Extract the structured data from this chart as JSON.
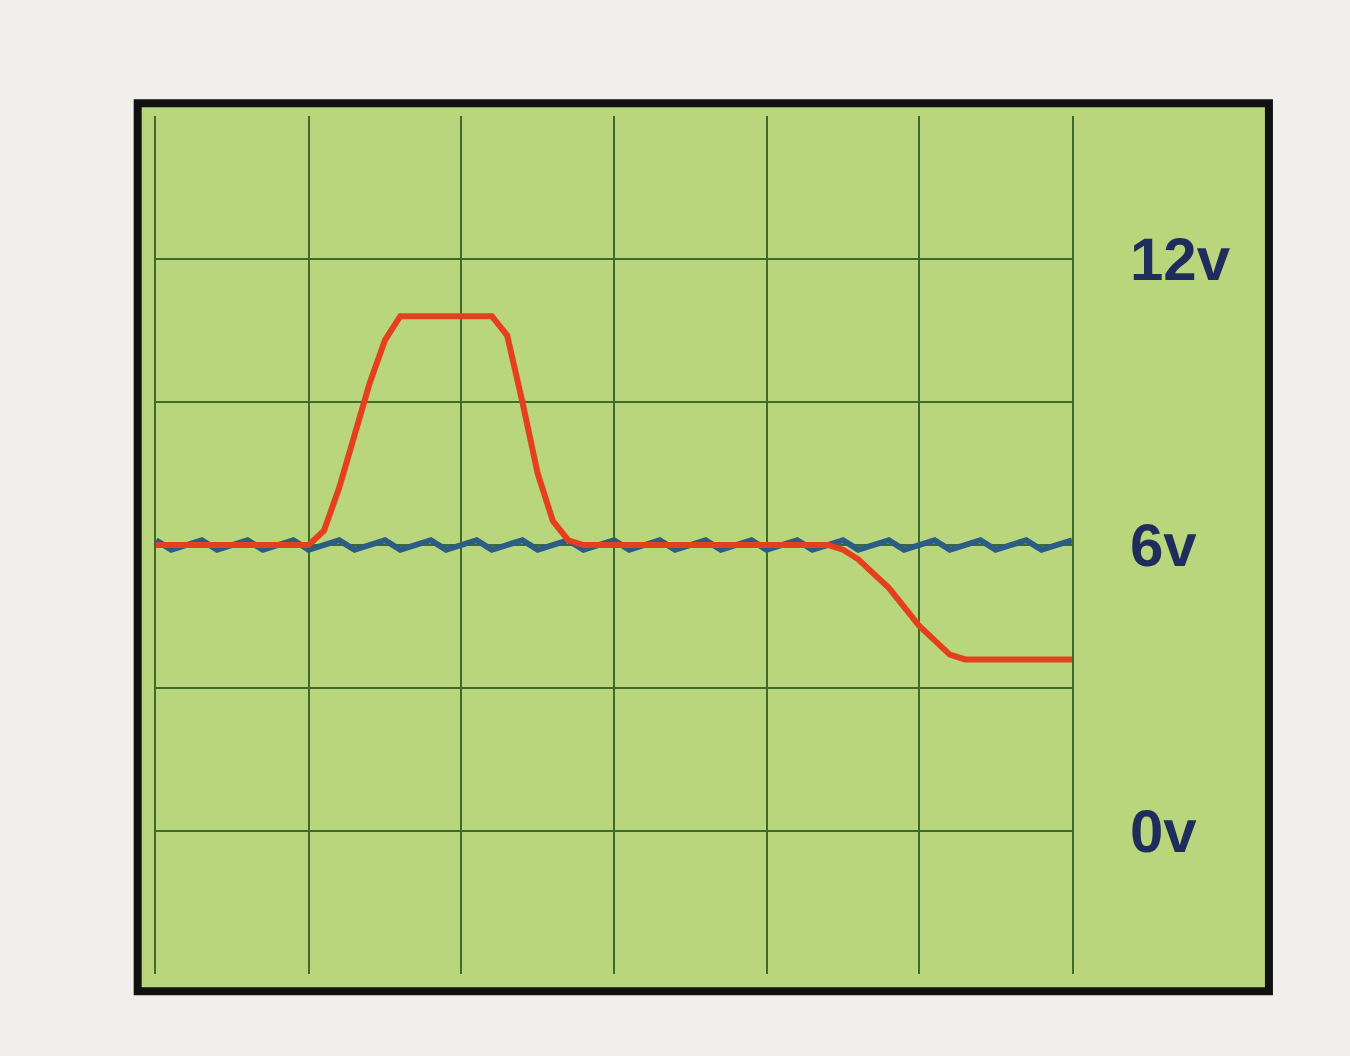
{
  "chart_data": {
    "type": "line",
    "categories": [
      null,
      null,
      null,
      null,
      null,
      null,
      null,
      null,
      null,
      null,
      null,
      null,
      null,
      null,
      null,
      null,
      null,
      null,
      null,
      null,
      null,
      null,
      null,
      null,
      null,
      null,
      null,
      null,
      null,
      null,
      null,
      null,
      null,
      null,
      null,
      null,
      null,
      null,
      null,
      null,
      null,
      null,
      null,
      null,
      null,
      null,
      null,
      null,
      null,
      null,
      null,
      null,
      null,
      null,
      null,
      null,
      null,
      null,
      null,
      null,
      null
    ],
    "series": [
      {
        "color": "#2b5d86",
        "values": [
          6.1,
          5.9,
          6.0,
          6.1,
          5.9,
          6.0,
          6.1,
          5.9,
          6.0,
          6.1,
          5.9,
          6.0,
          6.1,
          5.9,
          6.0,
          6.1,
          5.9,
          6.0,
          6.1,
          5.9,
          6.0,
          6.1,
          5.9,
          6.0,
          6.1,
          5.9,
          6.0,
          6.1,
          5.9,
          6.0,
          6.1,
          5.9,
          6.0,
          6.1,
          5.9,
          6.0,
          6.1,
          5.9,
          6.0,
          6.1,
          5.9,
          6.0,
          6.1,
          5.9,
          6.0,
          6.1,
          5.9,
          6.0,
          6.1,
          5.9,
          6.0,
          6.1,
          5.9,
          6.0,
          6.1,
          5.9,
          6.0,
          6.1,
          5.9,
          6.0,
          6.1
        ]
      },
      {
        "color": "#e5401e",
        "values": [
          6,
          6,
          6,
          6,
          6,
          6,
          6,
          6,
          6,
          6,
          6,
          6.3,
          7.2,
          8.3,
          9.4,
          10.3,
          10.8,
          10.8,
          10.8,
          10.8,
          10.8,
          10.8,
          10.8,
          10.4,
          9.0,
          7.5,
          6.5,
          6.1,
          6,
          6,
          6,
          6,
          6,
          6,
          6,
          6,
          6,
          6,
          6,
          6,
          6,
          6,
          6,
          6,
          6,
          5.9,
          5.7,
          5.4,
          5.1,
          4.7,
          4.3,
          4.0,
          3.7,
          3.6,
          3.6,
          3.6,
          3.6,
          3.6,
          3.6,
          3.6,
          3.6
        ]
      }
    ],
    "ylim": [
      -3,
      15
    ],
    "yticks": [
      {
        "value": 0,
        "label": "0v"
      },
      {
        "value": 3,
        "label": null
      },
      {
        "value": 6,
        "label": "6v"
      },
      {
        "value": 9,
        "label": null
      },
      {
        "value": 12,
        "label": "12v"
      }
    ],
    "tick_labels": "y",
    "grid": true,
    "marker": "none",
    "line_style": "solid"
  }
}
